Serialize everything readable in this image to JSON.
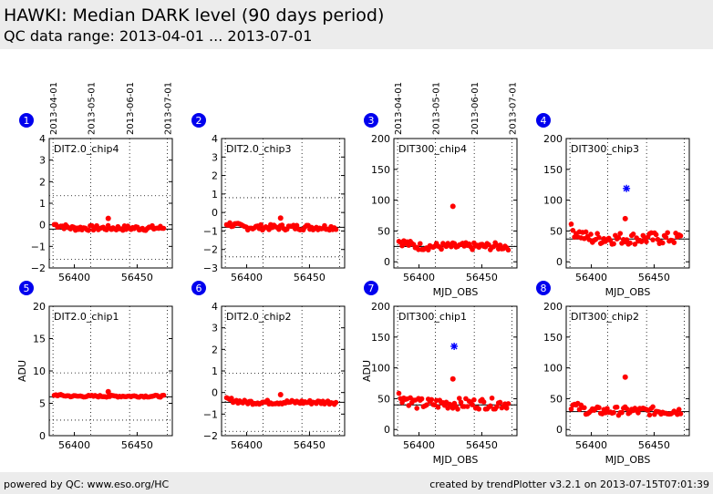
{
  "header": {
    "title": "HAWKI: Median DARK level (90 days period)",
    "subtitle": "QC data range: 2013-04-01 ... 2013-07-01"
  },
  "footer": {
    "left": "powered by QC: www.eso.org/HC",
    "right": "created by trendPlotter v3.2.1 on 2013-07-15T07:01:39"
  },
  "date_axis": {
    "ticks": [
      {
        "label": "2013-04-01",
        "x": 56383
      },
      {
        "label": "2013-05-01",
        "x": 56413
      },
      {
        "label": "2013-06-01",
        "x": 56444
      },
      {
        "label": "2013-07-01",
        "x": 56474
      }
    ]
  },
  "colors": {
    "points": "#ff0000",
    "outlier": "#0000ff",
    "badge": "#0000ee",
    "reference_line": "#000000"
  },
  "chart_data": [
    {
      "id": 1,
      "badge": "1",
      "label": "DIT2.0_chip4",
      "type": "scatter",
      "xlim": [
        56380,
        56478
      ],
      "ylim": [
        -2,
        4
      ],
      "yticks": [
        -2,
        -1,
        0,
        1,
        2,
        3,
        4
      ],
      "xticks": [
        56400,
        56450
      ],
      "xlabel": "",
      "ylabel": "",
      "ref": -0.2,
      "band": [
        -1.6,
        1.35
      ],
      "base": -0.15,
      "spread": 0.12,
      "spike": 0.3,
      "outliers": []
    },
    {
      "id": 2,
      "badge": "2",
      "label": "DIT2.0_chip3",
      "type": "scatter",
      "xlim": [
        56380,
        56478
      ],
      "ylim": [
        -3,
        4
      ],
      "yticks": [
        -3,
        -2,
        -1,
        0,
        1,
        2,
        3,
        4
      ],
      "xticks": [
        56400,
        56450
      ],
      "xlabel": "",
      "ylabel": "",
      "ref": -0.8,
      "band": [
        -2.4,
        0.8
      ],
      "base": -0.8,
      "spread": 0.15,
      "spike": -0.3,
      "outliers": []
    },
    {
      "id": 3,
      "badge": "3",
      "label": "DIT300_chip4",
      "type": "scatter",
      "xlim": [
        56380,
        56478
      ],
      "ylim": [
        -10,
        200
      ],
      "yticks": [
        0,
        50,
        100,
        150,
        200
      ],
      "xticks": [
        56400,
        56450
      ],
      "xlabel": "MJD_OBS",
      "ylabel": "",
      "ref": 25,
      "band": [
        -10,
        25
      ],
      "base": 25,
      "spread": 6,
      "spike": 90,
      "outliers": []
    },
    {
      "id": 4,
      "badge": "4",
      "label": "DIT300_chip3",
      "type": "scatter",
      "xlim": [
        56380,
        56478
      ],
      "ylim": [
        -10,
        200
      ],
      "yticks": [
        0,
        50,
        100,
        150,
        200
      ],
      "xticks": [
        56400,
        56450
      ],
      "xlabel": "MJD_OBS",
      "ylabel": "",
      "ref": 37,
      "band": [
        -10,
        37
      ],
      "base": 38,
      "spread": 10,
      "spike": 70,
      "outliers": [
        {
          "x": 56428,
          "y": 119
        }
      ]
    },
    {
      "id": 5,
      "badge": "5",
      "label": "DIT2.0_chip1",
      "type": "scatter",
      "xlim": [
        56380,
        56478
      ],
      "ylim": [
        0,
        20
      ],
      "yticks": [
        0,
        5,
        10,
        15,
        20
      ],
      "xticks": [
        56400,
        56450
      ],
      "xlabel": "",
      "ylabel": "ADU",
      "ref": 6.0,
      "band": [
        2.4,
        9.7
      ],
      "base": 6.1,
      "spread": 0.15,
      "spike": 6.8,
      "outliers": []
    },
    {
      "id": 6,
      "badge": "6",
      "label": "DIT2.0_chip2",
      "type": "scatter",
      "xlim": [
        56380,
        56478
      ],
      "ylim": [
        -2,
        4
      ],
      "yticks": [
        -2,
        -1,
        0,
        1,
        2,
        3,
        4
      ],
      "xticks": [
        56400,
        56450
      ],
      "xlabel": "",
      "ylabel": "",
      "ref": -0.45,
      "band": [
        -1.8,
        0.9
      ],
      "base": -0.45,
      "spread": 0.1,
      "spike": -0.1,
      "outliers": []
    },
    {
      "id": 7,
      "badge": "7",
      "label": "DIT300_chip1",
      "type": "scatter",
      "xlim": [
        56380,
        56478
      ],
      "ylim": [
        -10,
        200
      ],
      "yticks": [
        0,
        50,
        100,
        150,
        200
      ],
      "xticks": [
        56400,
        56450
      ],
      "xlabel": "MJD_OBS",
      "ylabel": "ADU",
      "ref": 40,
      "band": [
        -10,
        40
      ],
      "base": 42,
      "spread": 9,
      "spike": 82,
      "outliers": [
        {
          "x": 56428,
          "y": 135
        }
      ]
    },
    {
      "id": 8,
      "badge": "8",
      "label": "DIT300_chip2",
      "type": "scatter",
      "xlim": [
        56380,
        56478
      ],
      "ylim": [
        -10,
        200
      ],
      "yticks": [
        0,
        50,
        100,
        150,
        200
      ],
      "xticks": [
        56400,
        56450
      ],
      "xlabel": "MJD_OBS",
      "ylabel": "",
      "ref": 29,
      "band": [
        -10,
        29
      ],
      "base": 30,
      "spread": 7,
      "spike": 85,
      "outliers": []
    }
  ]
}
